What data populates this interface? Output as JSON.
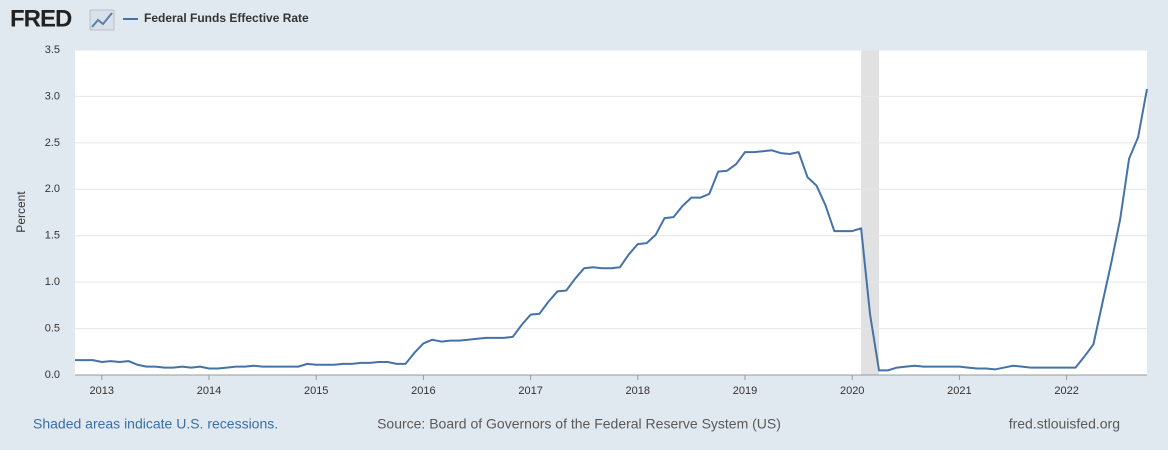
{
  "chart_data": {
    "type": "line",
    "logo": "FRED",
    "y_label": "Percent",
    "footer_left": "Shaded areas indicate U.S. recessions.",
    "footer_center": "Source: Board of Governors of the Federal Reserve System (US)",
    "footer_right": "fred.stlouisfed.org",
    "xlim": [
      2012.75,
      2022.75
    ],
    "xticks": [
      2013,
      2014,
      2015,
      2016,
      2017,
      2018,
      2019,
      2020,
      2021,
      2022
    ],
    "ylim": [
      0,
      3.5
    ],
    "yticks": [
      {
        "value": 0,
        "label": "0.0"
      },
      0.5,
      {
        "value": 1,
        "label": "1.0"
      },
      1.5,
      {
        "value": 2,
        "label": "2.0"
      },
      2.5,
      {
        "value": 3,
        "label": "3.0"
      },
      3.5
    ],
    "grid": true,
    "recessions": [
      [
        2020.083,
        2020.25
      ]
    ],
    "x": [
      2012.75,
      2012.833,
      2012.917,
      2013,
      2013.083,
      2013.167,
      2013.25,
      2013.333,
      2013.417,
      2013.5,
      2013.583,
      2013.667,
      2013.75,
      2013.833,
      2013.917,
      2014,
      2014.083,
      2014.167,
      2014.25,
      2014.333,
      2014.417,
      2014.5,
      2014.583,
      2014.667,
      2014.75,
      2014.833,
      2014.917,
      2015,
      2015.083,
      2015.167,
      2015.25,
      2015.333,
      2015.417,
      2015.5,
      2015.583,
      2015.667,
      2015.75,
      2015.833,
      2015.917,
      2016,
      2016.083,
      2016.167,
      2016.25,
      2016.333,
      2016.417,
      2016.5,
      2016.583,
      2016.667,
      2016.75,
      2016.833,
      2016.917,
      2017,
      2017.083,
      2017.167,
      2017.25,
      2017.333,
      2017.417,
      2017.5,
      2017.583,
      2017.667,
      2017.75,
      2017.833,
      2017.917,
      2018,
      2018.083,
      2018.167,
      2018.25,
      2018.333,
      2018.417,
      2018.5,
      2018.583,
      2018.667,
      2018.75,
      2018.833,
      2018.917,
      2019,
      2019.083,
      2019.167,
      2019.25,
      2019.333,
      2019.417,
      2019.5,
      2019.583,
      2019.667,
      2019.75,
      2019.833,
      2019.917,
      2020,
      2020.083,
      2020.167,
      2020.25,
      2020.333,
      2020.417,
      2020.5,
      2020.583,
      2020.667,
      2020.75,
      2020.833,
      2020.917,
      2021,
      2021.083,
      2021.167,
      2021.25,
      2021.333,
      2021.417,
      2021.5,
      2021.583,
      2021.667,
      2021.75,
      2021.833,
      2021.917,
      2022,
      2022.083,
      2022.167,
      2022.25,
      2022.333,
      2022.417,
      2022.5,
      2022.583,
      2022.667,
      2022.75
    ],
    "series": [
      {
        "name": "Federal Funds Effective Rate",
        "color": "#4572a7",
        "values": [
          0.16,
          0.16,
          0.16,
          0.14,
          0.15,
          0.14,
          0.15,
          0.11,
          0.09,
          0.09,
          0.08,
          0.08,
          0.09,
          0.08,
          0.09,
          0.07,
          0.07,
          0.08,
          0.09,
          0.09,
          0.1,
          0.09,
          0.09,
          0.09,
          0.09,
          0.09,
          0.12,
          0.11,
          0.11,
          0.11,
          0.12,
          0.12,
          0.13,
          0.13,
          0.14,
          0.14,
          0.12,
          0.12,
          0.24,
          0.34,
          0.38,
          0.36,
          0.37,
          0.37,
          0.38,
          0.39,
          0.4,
          0.4,
          0.4,
          0.41,
          0.54,
          0.65,
          0.66,
          0.79,
          0.9,
          0.91,
          1.04,
          1.15,
          1.16,
          1.15,
          1.15,
          1.16,
          1.3,
          1.41,
          1.42,
          1.51,
          1.69,
          1.7,
          1.82,
          1.91,
          1.91,
          1.95,
          2.19,
          2.2,
          2.27,
          2.4,
          2.4,
          2.41,
          2.42,
          2.39,
          2.38,
          2.4,
          2.13,
          2.04,
          1.83,
          1.55,
          1.55,
          1.55,
          1.58,
          0.65,
          0.05,
          0.05,
          0.08,
          0.09,
          0.1,
          0.09,
          0.09,
          0.09,
          0.09,
          0.09,
          0.08,
          0.07,
          0.07,
          0.06,
          0.08,
          0.1,
          0.09,
          0.08,
          0.08,
          0.08,
          0.08,
          0.08,
          0.08,
          0.2,
          0.33,
          0.77,
          1.21,
          1.68,
          2.33,
          2.56,
          3.08
        ]
      }
    ]
  }
}
